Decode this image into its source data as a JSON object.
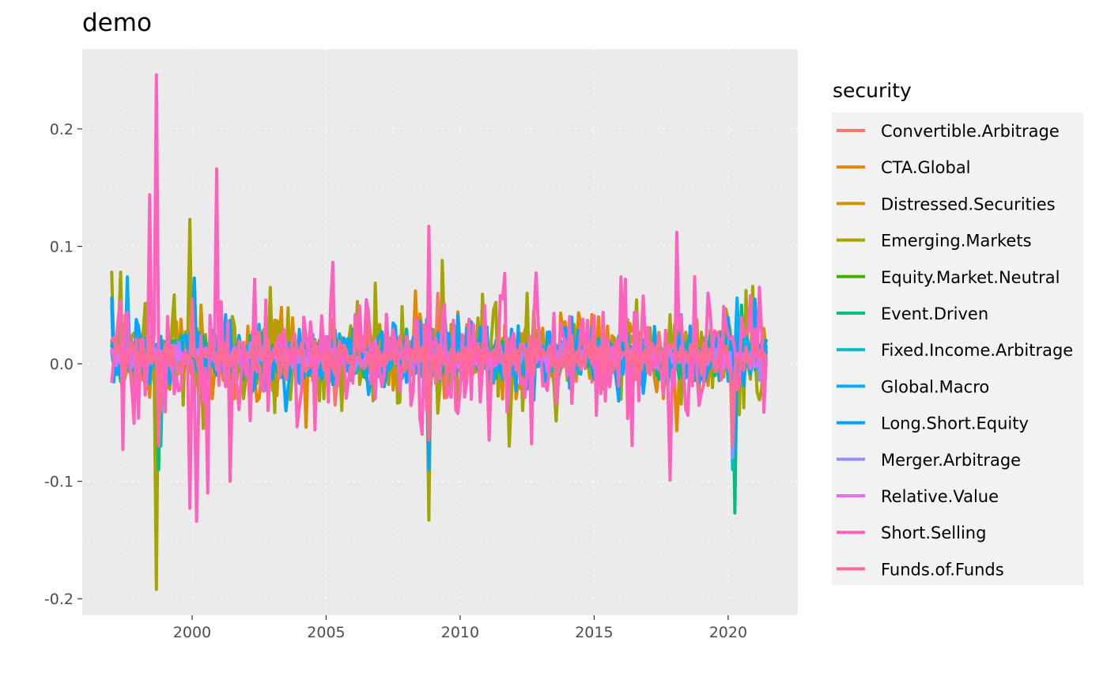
{
  "chart_data": {
    "type": "line",
    "title": "demo",
    "xlabel": "",
    "ylabel": "",
    "x_range": [
      1997.0,
      2021.4
    ],
    "xlim": [
      1995.9,
      2022.6
    ],
    "ylim": [
      -0.214,
      0.268
    ],
    "x_ticks": [
      2000,
      2005,
      2010,
      2015,
      2020
    ],
    "x_tick_labels": [
      "2000",
      "2005",
      "2010",
      "2015",
      "2020"
    ],
    "y_ticks": [
      -0.2,
      -0.1,
      0.0,
      0.1,
      0.2
    ],
    "y_tick_labels": [
      "-0.2",
      "-0.1",
      "0.0",
      "0.1",
      "0.2"
    ],
    "grid": true,
    "legend": {
      "title": "security",
      "position": "right"
    },
    "series": [
      {
        "name": "Convertible.Arbitrage",
        "color": "#F8766D",
        "amplitude": 0.012,
        "start": [
          1997.0,
          0.012
        ],
        "end": [
          2021.4,
          0.005
        ],
        "spikes": [
          [
            1998.75,
            -0.05
          ],
          [
            2005.3,
            -0.035
          ],
          [
            2008.85,
            -0.07
          ],
          [
            2009.2,
            0.06
          ]
        ]
      },
      {
        "name": "CTA.Global",
        "color": "#E58700",
        "amplitude": 0.025,
        "start": [
          1997.0,
          0.012
        ],
        "end": [
          2021.4,
          0.01
        ],
        "spikes": [
          [
            2004.25,
            -0.054
          ],
          [
            2003.3,
            0.048
          ],
          [
            2008.3,
            0.062
          ],
          [
            2014.9,
            0.042
          ],
          [
            2018.1,
            -0.057
          ],
          [
            2015.2,
            0.04
          ]
        ]
      },
      {
        "name": "Distressed.Securities",
        "color": "#C99800",
        "amplitude": 0.015,
        "start": [
          1997.0,
          0.02
        ],
        "end": [
          2021.4,
          0.01
        ],
        "spikes": [
          [
            1998.75,
            -0.085
          ],
          [
            2008.85,
            -0.08
          ],
          [
            2020.25,
            -0.085
          ],
          [
            2000.3,
            0.05
          ]
        ]
      },
      {
        "name": "Emerging.Markets",
        "color": "#A3A500",
        "amplitude": 0.032,
        "start": [
          1997.0,
          0.078
        ],
        "end": [
          2021.4,
          0.02
        ],
        "spikes": [
          [
            1998.65,
            -0.192
          ],
          [
            1997.3,
            0.078
          ],
          [
            1999.95,
            0.123
          ],
          [
            2000.4,
            -0.055
          ],
          [
            2008.85,
            -0.133
          ],
          [
            2009.35,
            0.088
          ],
          [
            2011.8,
            -0.07
          ],
          [
            2006.2,
            0.053
          ],
          [
            2002.9,
            0.065
          ],
          [
            2020.95,
            0.066
          ],
          [
            2020.2,
            -0.06
          ]
        ]
      },
      {
        "name": "Equity.Market.Neutral",
        "color": "#39B600",
        "amplitude": 0.008,
        "start": [
          1997.0,
          0.01
        ],
        "end": [
          2021.4,
          0.005
        ],
        "spikes": [
          [
            2000.2,
            0.03
          ],
          [
            2008.8,
            -0.03
          ],
          [
            2020.2,
            -0.02
          ]
        ]
      },
      {
        "name": "Event.Driven",
        "color": "#00BF7D",
        "amplitude": 0.013,
        "start": [
          1997.0,
          0.015
        ],
        "end": [
          2021.4,
          0.01
        ],
        "spikes": [
          [
            1998.75,
            -0.09
          ],
          [
            2008.85,
            -0.085
          ],
          [
            2020.25,
            -0.127
          ],
          [
            2020.5,
            0.05
          ]
        ]
      },
      {
        "name": "Fixed.Income.Arbitrage",
        "color": "#00BFC4",
        "amplitude": 0.007,
        "start": [
          1997.0,
          0.01
        ],
        "end": [
          2021.4,
          0.005
        ],
        "spikes": [
          [
            1998.8,
            -0.07
          ],
          [
            2008.85,
            -0.087
          ],
          [
            2020.2,
            -0.09
          ]
        ]
      },
      {
        "name": "Global.Macro",
        "color": "#00B0F6",
        "amplitude": 0.015,
        "start": [
          1997.0,
          0.05
        ],
        "end": [
          2021.4,
          0.015
        ],
        "spikes": [
          [
            1997.6,
            0.074
          ],
          [
            2000.1,
            0.07
          ],
          [
            2008.8,
            -0.06
          ],
          [
            2020.3,
            0.056
          ]
        ]
      },
      {
        "name": "Long.Short.Equity",
        "color": "#00A5FF",
        "amplitude": 0.022,
        "start": [
          1997.0,
          0.056
        ],
        "end": [
          2021.4,
          0.02
        ],
        "spikes": [
          [
            2000.1,
            0.073
          ],
          [
            2008.85,
            -0.09
          ],
          [
            2020.25,
            -0.075
          ],
          [
            2021.0,
            0.055
          ],
          [
            2003.5,
            -0.04
          ]
        ]
      },
      {
        "name": "Merger.Arbitrage",
        "color": "#9590FF",
        "amplitude": 0.008,
        "start": [
          1997.0,
          0.01
        ],
        "end": [
          2021.4,
          0.005
        ],
        "spikes": [
          [
            1998.75,
            -0.06
          ],
          [
            2020.2,
            -0.08
          ],
          [
            2021.2,
            -0.014
          ]
        ]
      },
      {
        "name": "Relative.Value",
        "color": "#E76BF3",
        "amplitude": 0.008,
        "start": [
          1997.0,
          0.012
        ],
        "end": [
          2021.4,
          0.005
        ],
        "spikes": [
          [
            1998.75,
            -0.055
          ],
          [
            2008.85,
            -0.055
          ],
          [
            2020.2,
            -0.06
          ]
        ]
      },
      {
        "name": "Short.Selling",
        "color": "#FF62BC",
        "amplitude": 0.042,
        "start": [
          1997.0,
          -0.015
        ],
        "end": [
          2021.4,
          0.003
        ],
        "spikes": [
          [
            1998.65,
            0.246
          ],
          [
            1998.4,
            0.144
          ],
          [
            1999.95,
            -0.123
          ],
          [
            2000.2,
            -0.134
          ],
          [
            2000.6,
            -0.11
          ],
          [
            2000.95,
            0.166
          ],
          [
            2001.4,
            -0.1
          ],
          [
            2008.8,
            0.117
          ],
          [
            2008.6,
            -0.06
          ],
          [
            2011.65,
            0.077
          ],
          [
            2017.8,
            -0.099
          ],
          [
            2018.05,
            0.112
          ],
          [
            2016.0,
            0.074
          ],
          [
            1997.4,
            -0.073
          ],
          [
            2002.3,
            0.072
          ]
        ]
      },
      {
        "name": "Funds.of.Funds",
        "color": "#FF6C91",
        "amplitude": 0.012,
        "start": [
          1997.0,
          0.02
        ],
        "end": [
          2021.4,
          0.005
        ],
        "spikes": [
          [
            1998.75,
            -0.07
          ],
          [
            2008.85,
            -0.065
          ],
          [
            2020.2,
            -0.07
          ],
          [
            2000.0,
            0.055
          ]
        ]
      }
    ]
  }
}
